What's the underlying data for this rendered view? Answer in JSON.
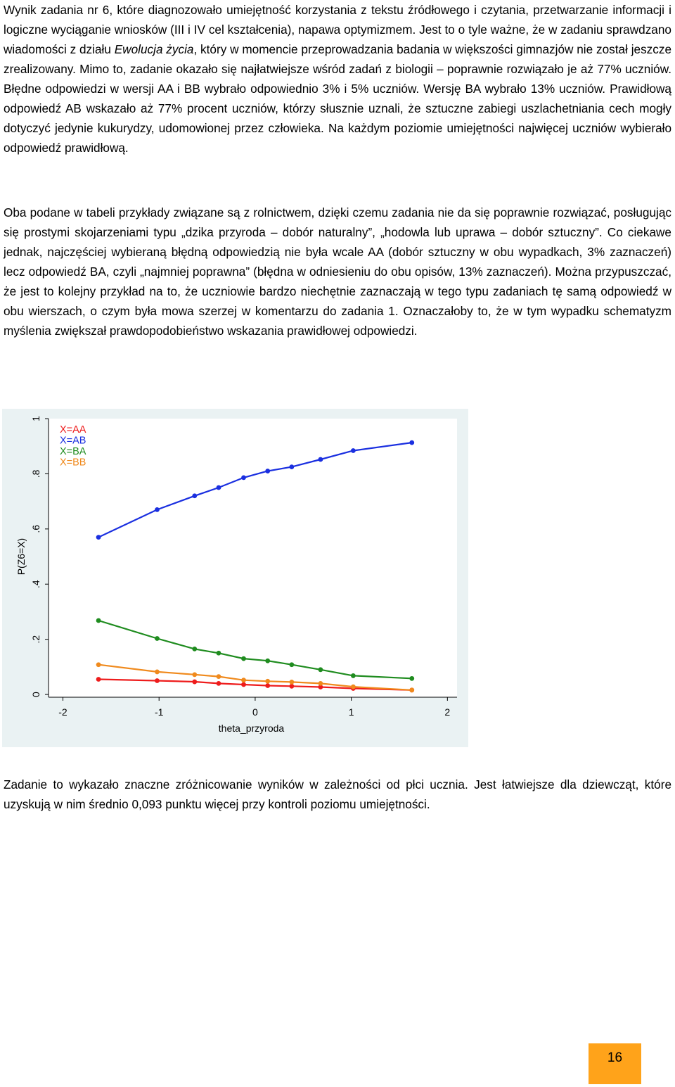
{
  "paragraphs": {
    "p1_a": "Wynik zadania nr 6, które diagnozowało umiejętność korzystania z tekstu źródłowego i czytania, przetwarzanie informacji i logiczne wyciąganie wniosków (III i IV cel kształcenia), napawa optymizmem. Jest to o tyle ważne, że w zadaniu sprawdzano wiadomości z działu ",
    "p1_em": "Ewolucja życia",
    "p1_b": ", który w momencie przeprowadzania badania w większości gimnazjów nie został jeszcze zrealizowany. Mimo to, zadanie okazało się najłatwiejsze wśród zadań z biologii – poprawnie rozwiązało je aż 77% uczniów. Błędne odpowiedzi w wersji AA i BB wybrało odpowiednio 3% i 5% uczniów. Wersję BA wybrało 13% uczniów. Prawidłową odpowiedź AB wskazało aż 77% procent uczniów, którzy słusznie uznali, że sztuczne zabiegi uszlachetniania cech mogły dotyczyć jedynie kukurydzy, udomowionej przez człowieka. Na każdym poziomie umiejętności najwięcej uczniów wybierało odpowiedź prawidłową.",
    "p2": "Oba podane w tabeli przykłady związane są z rolnictwem, dzięki czemu zadania nie da się poprawnie rozwiązać, posługując się prostymi skojarzeniami typu „dzika przyroda – dobór naturalny”, „hodowla lub uprawa – dobór sztuczny”. Co ciekawe jednak, najczęściej wybieraną błędną odpowiedzią nie była wcale AA (dobór sztuczny w obu wypadkach, 3% zaznaczeń) lecz odpowiedź BA, czyli „najmniej poprawna” (błędna w odniesieniu do obu opisów, 13% zaznaczeń). Można przypuszczać, że jest to kolejny przykład na to, że uczniowie bardzo niechętnie zaznaczają w tego typu zadaniach tę samą odpowiedź w obu wierszach, o czym była mowa szerzej w komentarzu do zadania 1. Oznaczałoby to, że w tym wypadku schematyzm myślenia zwiększał prawdopodobieństwo wskazania prawidłowej odpowiedzi.",
    "p3": "Zadanie to wykazało znaczne zróżnicowanie wyników w zależności od płci ucznia. Jest łatwiejsze dla dziewcząt, które uzyskują w nim średnio 0,093 punktu więcej przy kontroli poziomu umiejętności."
  },
  "page_number": "16",
  "chart_data": {
    "type": "line",
    "xlabel": "theta_przyroda",
    "ylabel": "P(Z6=X)",
    "xlim": [
      -2.15,
      2.1
    ],
    "ylim": [
      -0.01,
      1.0
    ],
    "x_ticks": [
      -2,
      -1,
      0,
      1,
      2
    ],
    "x_tick_labels": [
      "-2",
      "-1",
      "0",
      "1",
      "2"
    ],
    "y_ticks": [
      0,
      0.2,
      0.4,
      0.6,
      0.8,
      1
    ],
    "y_tick_labels": [
      "0",
      ".2",
      ".4",
      ".6",
      ".8",
      "1"
    ],
    "legend_position": "top-left",
    "x": [
      -1.63,
      -1.02,
      -0.63,
      -0.38,
      -0.12,
      0.13,
      0.38,
      0.68,
      1.02,
      1.63
    ],
    "series": [
      {
        "name": "X=AA",
        "color": "#ee1c1c",
        "values": [
          0.055,
          0.05,
          0.046,
          0.04,
          0.036,
          0.032,
          0.03,
          0.027,
          0.022,
          0.016
        ]
      },
      {
        "name": "X=AB",
        "color": "#1a2fe0",
        "values": [
          0.57,
          0.67,
          0.72,
          0.75,
          0.786,
          0.81,
          0.825,
          0.852,
          0.884,
          0.913
        ]
      },
      {
        "name": "X=BA",
        "color": "#1f8c1f",
        "values": [
          0.268,
          0.203,
          0.165,
          0.15,
          0.13,
          0.122,
          0.108,
          0.09,
          0.068,
          0.058
        ]
      },
      {
        "name": "X=BB",
        "color": "#f08a1d",
        "values": [
          0.108,
          0.082,
          0.072,
          0.065,
          0.052,
          0.048,
          0.045,
          0.04,
          0.028,
          0.016
        ]
      }
    ]
  }
}
